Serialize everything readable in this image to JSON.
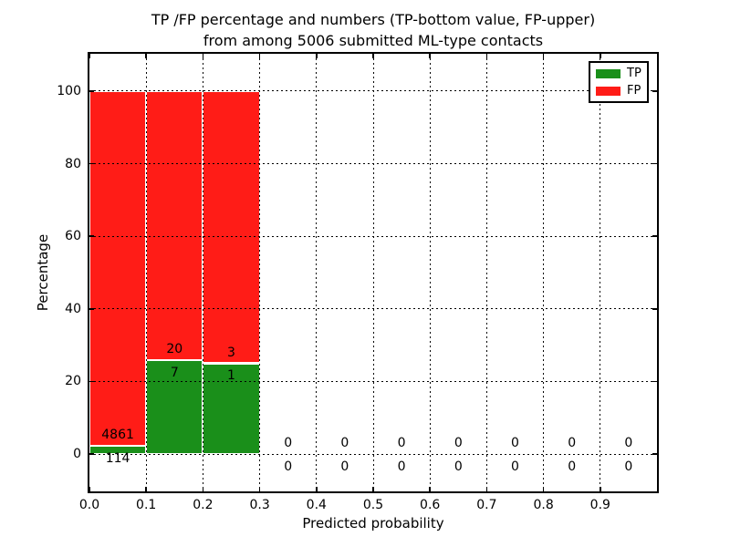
{
  "chart_data": {
    "type": "bar",
    "stacked": true,
    "title_lines": [
      "TP /FP percentage and numbers (TP-bottom value, FP-upper)",
      "from among 5006 submitted ML-type contacts"
    ],
    "title": "TP /FP percentage and numbers (TP-bottom value, FP-upper) from among 5006 submitted ML-type contacts",
    "xlabel": "Predicted probability",
    "ylabel": "Percentage",
    "total_contacts": 5006,
    "xlim": [
      0.0,
      1.0
    ],
    "ylim": [
      -10.3,
      110.3
    ],
    "xtick_values": [
      0.0,
      0.1,
      0.2,
      0.3,
      0.4,
      0.5,
      0.6,
      0.7,
      0.8,
      0.9
    ],
    "xtick_labels": [
      "0.0",
      "0.1",
      "0.2",
      "0.3",
      "0.4",
      "0.5",
      "0.6",
      "0.7",
      "0.8",
      "0.9"
    ],
    "ytick_values": [
      0,
      20,
      40,
      60,
      80,
      100
    ],
    "ytick_labels": [
      "0",
      "20",
      "40",
      "60",
      "80",
      "100"
    ],
    "grid": "dotted",
    "legend_position": "upper right",
    "series": [
      {
        "name": "TP",
        "color": "#1a8f1a"
      },
      {
        "name": "FP",
        "color": "#ff1c17"
      }
    ],
    "bins": [
      {
        "x0": 0.0,
        "x1": 0.1,
        "tp_count": 114,
        "fp_count": 4861,
        "tp_pct": 2.29,
        "fp_pct": 97.71
      },
      {
        "x0": 0.1,
        "x1": 0.2,
        "tp_count": 7,
        "fp_count": 20,
        "tp_pct": 25.93,
        "fp_pct": 74.07
      },
      {
        "x0": 0.2,
        "x1": 0.3,
        "tp_count": 1,
        "fp_count": 3,
        "tp_pct": 25.0,
        "fp_pct": 75.0
      },
      {
        "x0": 0.3,
        "x1": 0.4,
        "tp_count": 0,
        "fp_count": 0,
        "tp_pct": 0,
        "fp_pct": 0
      },
      {
        "x0": 0.4,
        "x1": 0.5,
        "tp_count": 0,
        "fp_count": 0,
        "tp_pct": 0,
        "fp_pct": 0
      },
      {
        "x0": 0.5,
        "x1": 0.6,
        "tp_count": 0,
        "fp_count": 0,
        "tp_pct": 0,
        "fp_pct": 0
      },
      {
        "x0": 0.6,
        "x1": 0.7,
        "tp_count": 0,
        "fp_count": 0,
        "tp_pct": 0,
        "fp_pct": 0
      },
      {
        "x0": 0.7,
        "x1": 0.8,
        "tp_count": 0,
        "fp_count": 0,
        "tp_pct": 0,
        "fp_pct": 0
      },
      {
        "x0": 0.8,
        "x1": 0.9,
        "tp_count": 0,
        "fp_count": 0,
        "tp_pct": 0,
        "fp_pct": 0
      },
      {
        "x0": 0.9,
        "x1": 1.0,
        "tp_count": 0,
        "fp_count": 0,
        "tp_pct": 0,
        "fp_pct": 0
      }
    ],
    "bar_label_offsets_pct": {
      "fp_label": 3.0,
      "tp_label": -3.5
    }
  }
}
